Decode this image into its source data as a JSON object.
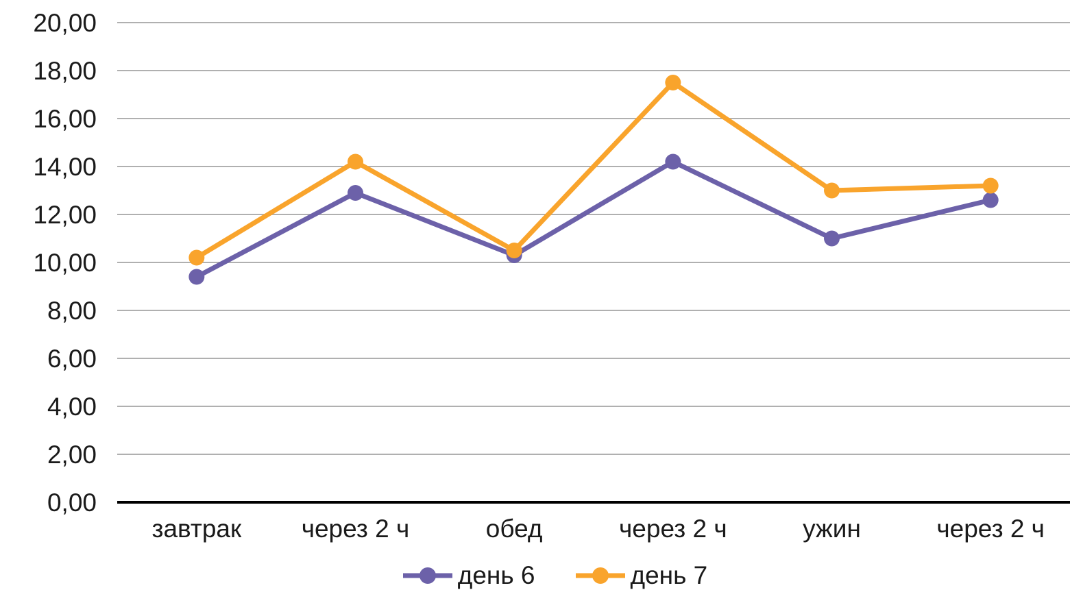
{
  "chart_data": {
    "type": "line",
    "title": "",
    "categories": [
      "завтрак",
      "через 2 ч",
      "обед",
      "через 2 ч",
      "ужин",
      "через 2 ч"
    ],
    "series": [
      {
        "name": "день 6",
        "color": "#6C61A9",
        "values": [
          9.4,
          12.9,
          10.3,
          14.2,
          11.0,
          12.6
        ]
      },
      {
        "name": "день 7",
        "color": "#F9A42C",
        "values": [
          10.2,
          14.2,
          10.5,
          17.5,
          13.0,
          13.2
        ]
      }
    ],
    "ylim": [
      0,
      20
    ],
    "ytick_step": 2,
    "ytick_labels": [
      "0,00",
      "2,00",
      "4,00",
      "6,00",
      "8,00",
      "10,00",
      "12,00",
      "14,00",
      "16,00",
      "18,00",
      "20,00"
    ],
    "decimal_separator": ",",
    "grid": "horizontal",
    "gridline_color": "#B0B0B0",
    "axis_line_color": "#000000",
    "text_color": "#1A1A1A",
    "background": "#FFFFFF",
    "legend_position": "bottom"
  }
}
